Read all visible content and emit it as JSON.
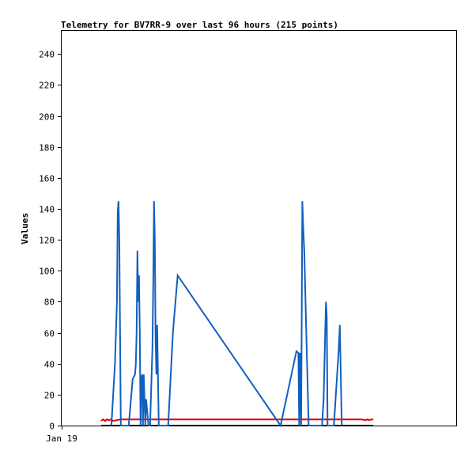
{
  "chart_data": {
    "type": "line",
    "title": "Telemetry for BV7RR-9 over last 96 hours (215 points)",
    "xlabel": "",
    "ylabel": "Values",
    "x_tick_labels": [
      "Jan 19"
    ],
    "y_ticks": [
      0,
      20,
      40,
      60,
      80,
      100,
      120,
      140,
      160,
      180,
      200,
      220,
      240
    ],
    "ylim": [
      0,
      255
    ],
    "xlim": [
      0,
      100
    ],
    "grid": false,
    "legend": "none",
    "series": [
      {
        "color": "#1060c0",
        "x": [
          12.6,
          13.5,
          14.0,
          14.2,
          14.4,
          14.6,
          15.0,
          17.0,
          18.0,
          18.6,
          18.8,
          19.0,
          19.2,
          19.4,
          19.6,
          19.8,
          20.0,
          20.2,
          20.4,
          20.6,
          20.8,
          21.0,
          21.2,
          21.4,
          22.0,
          22.4,
          23.0,
          23.2,
          23.4,
          23.6,
          23.8,
          24.0,
          24.2,
          24.6,
          26.0,
          27.0,
          28.2,
          29.4,
          55.5,
          59.5,
          60.0,
          60.2,
          60.4,
          60.7,
          61.0,
          61.2,
          61.5,
          62.0,
          62.6,
          63.4,
          66.0,
          66.4,
          66.8,
          67.0,
          67.2,
          67.4,
          67.8,
          68.4,
          69.0,
          70.2,
          70.5,
          71.0
        ],
        "y": [
          0,
          40,
          80,
          138,
          145,
          120,
          0,
          0,
          30,
          33,
          40,
          60,
          113,
          80,
          97,
          60,
          0,
          30,
          33,
          0,
          33,
          17,
          0,
          17,
          0,
          0,
          50,
          90,
          145,
          120,
          55,
          33,
          65,
          0,
          0,
          0,
          60,
          97,
          0,
          48,
          47,
          0,
          47,
          0,
          145,
          130,
          112,
          60,
          0,
          0,
          0,
          17,
          60,
          80,
          70,
          0,
          0,
          0,
          0,
          48,
          65,
          0
        ]
      },
      {
        "color": "#e00000",
        "x": [
          10.0,
          10.5,
          11.0,
          11.5,
          12.0,
          12.5,
          13.0,
          15.0,
          30.0,
          50.0,
          70.0,
          76.0,
          77.0,
          77.5,
          78.0,
          78.5,
          79.0
        ],
        "y": [
          3,
          4,
          3,
          4,
          3.5,
          4,
          3,
          4,
          4,
          4,
          4,
          4,
          3.5,
          4,
          3.5,
          4,
          4
        ]
      },
      {
        "color": "#000000",
        "x": [
          10.0,
          79.0
        ],
        "y": [
          0,
          0
        ]
      }
    ]
  }
}
